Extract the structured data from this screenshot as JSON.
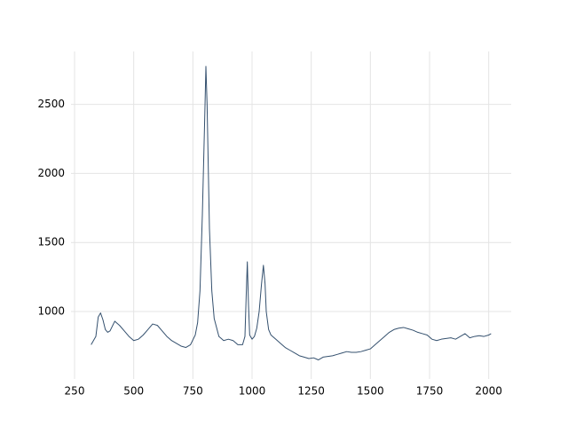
{
  "chart_data": {
    "type": "line",
    "x": [
      320,
      340,
      350,
      360,
      370,
      380,
      390,
      400,
      420,
      440,
      460,
      480,
      500,
      520,
      540,
      560,
      580,
      600,
      620,
      640,
      660,
      680,
      700,
      720,
      740,
      760,
      770,
      780,
      790,
      800,
      805,
      810,
      820,
      830,
      840,
      860,
      880,
      900,
      920,
      940,
      960,
      970,
      975,
      980,
      985,
      990,
      1000,
      1010,
      1020,
      1030,
      1040,
      1048,
      1055,
      1060,
      1070,
      1080,
      1100,
      1120,
      1140,
      1160,
      1180,
      1200,
      1220,
      1240,
      1260,
      1280,
      1300,
      1320,
      1340,
      1360,
      1380,
      1400,
      1420,
      1440,
      1460,
      1480,
      1500,
      1520,
      1540,
      1560,
      1580,
      1600,
      1620,
      1640,
      1660,
      1680,
      1700,
      1720,
      1740,
      1760,
      1780,
      1800,
      1820,
      1840,
      1860,
      1880,
      1900,
      1920,
      1940,
      1960,
      1980,
      2000,
      2010
    ],
    "values": [
      760,
      820,
      960,
      990,
      940,
      870,
      850,
      860,
      930,
      900,
      860,
      820,
      790,
      800,
      830,
      870,
      910,
      900,
      860,
      820,
      790,
      770,
      750,
      740,
      760,
      830,
      920,
      1150,
      1700,
      2400,
      2775,
      2500,
      1600,
      1150,
      950,
      820,
      790,
      800,
      790,
      760,
      760,
      820,
      1100,
      1360,
      1050,
      830,
      800,
      820,
      880,
      1000,
      1200,
      1335,
      1200,
      1000,
      870,
      830,
      800,
      770,
      740,
      720,
      700,
      680,
      670,
      660,
      665,
      650,
      670,
      675,
      680,
      690,
      700,
      710,
      705,
      705,
      710,
      720,
      730,
      760,
      790,
      820,
      850,
      870,
      880,
      885,
      875,
      865,
      850,
      840,
      830,
      800,
      790,
      800,
      805,
      810,
      800,
      820,
      840,
      810,
      820,
      825,
      820,
      830,
      840
    ],
    "color": "#34506e",
    "xlim": [
      235,
      2095
    ],
    "ylim": [
      512,
      2883
    ],
    "xticks": [
      250,
      500,
      750,
      1000,
      1250,
      1500,
      1750,
      2000
    ],
    "yticks": [
      1000,
      1500,
      2000,
      2500
    ],
    "grid": true
  }
}
